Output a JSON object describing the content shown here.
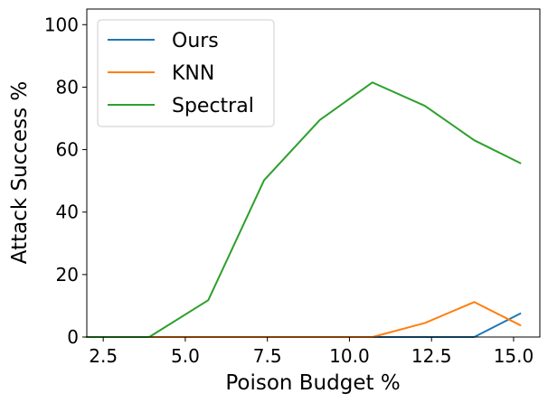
{
  "chart_data": {
    "type": "line",
    "title": "",
    "xlabel": "Poison Budget %",
    "ylabel": "Attack Success %",
    "xlim": [
      2.0,
      15.8
    ],
    "ylim": [
      0,
      105
    ],
    "xticks": [
      2.5,
      5.0,
      7.5,
      10.0,
      12.5,
      15.0
    ],
    "xtick_labels": [
      "2.5",
      "5.0",
      "7.5",
      "10.0",
      "12.5",
      "15.0"
    ],
    "yticks": [
      0,
      20,
      40,
      60,
      80,
      100
    ],
    "ytick_labels": [
      "0",
      "20",
      "40",
      "60",
      "80",
      "100"
    ],
    "grid": false,
    "legend_position": "top-left",
    "x": [
      2.0,
      3.9,
      5.7,
      7.4,
      9.1,
      10.7,
      12.3,
      13.8,
      15.2
    ],
    "series": [
      {
        "name": "Ours",
        "color": "#1f77b4",
        "values": [
          0,
          0,
          0,
          0,
          0,
          0,
          0,
          0,
          7.5
        ]
      },
      {
        "name": "KNN",
        "color": "#ff7f0e",
        "values": [
          0,
          0,
          0,
          0,
          0,
          0,
          4.5,
          11.2,
          3.8
        ]
      },
      {
        "name": "Spectral",
        "color": "#2ca02c",
        "values": [
          0,
          0,
          11.8,
          50.2,
          69.5,
          81.5,
          74.0,
          63.0,
          55.7
        ]
      }
    ]
  }
}
